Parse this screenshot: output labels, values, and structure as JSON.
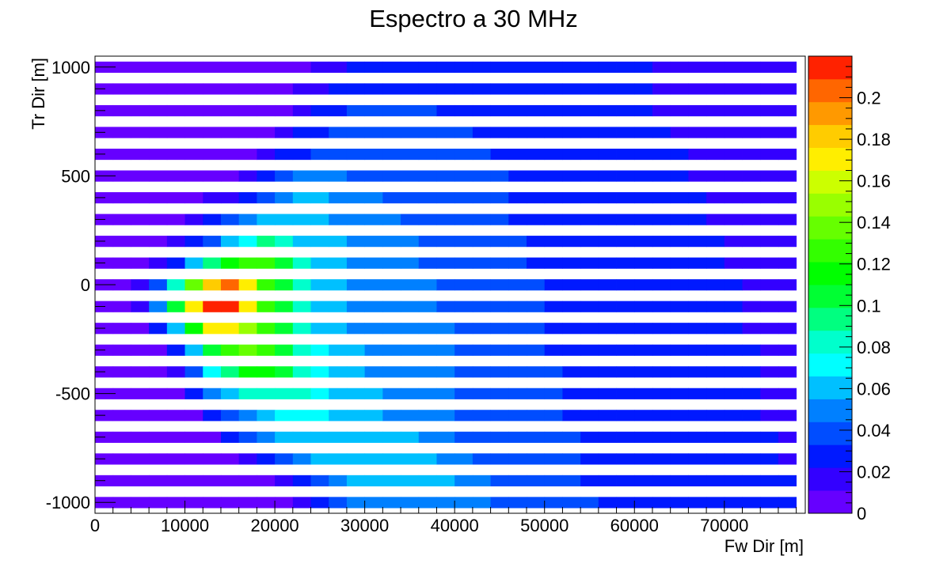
{
  "chart_data": {
    "type": "heatmap",
    "title": "Espectro a 30 MHz",
    "xlabel": "Fw Dir [m]",
    "ylabel": "Tr Dir [m]",
    "xlim": [
      0,
      79000
    ],
    "ylim": [
      -1050,
      1050
    ],
    "x_ticks": [
      0,
      10000,
      20000,
      30000,
      40000,
      50000,
      60000,
      70000
    ],
    "x_tick_labels": [
      "0",
      "10000",
      "20000",
      "30000",
      "40000",
      "50000",
      "60000",
      "70000"
    ],
    "y_ticks": [
      -1000,
      -500,
      0,
      500,
      1000
    ],
    "y_tick_labels": [
      "-1000",
      "-500",
      "0",
      "500",
      "1000"
    ],
    "colorbar": {
      "min": 0,
      "max": 0.22,
      "levels": 20,
      "ticks": [
        0,
        0.02,
        0.04,
        0.06,
        0.08,
        0.1,
        0.12,
        0.14,
        0.16,
        0.18,
        0.2
      ],
      "tick_labels": [
        "0",
        "0.02",
        "0.04",
        "0.06",
        "0.08",
        "0.1",
        "0.12",
        "0.14",
        "0.16",
        "0.18",
        "0.2"
      ],
      "colors": [
        "#6600ff",
        "#3300ff",
        "#0019ff",
        "#004dff",
        "#0080ff",
        "#00c0ff",
        "#00ffff",
        "#00ffcc",
        "#00ff80",
        "#00ff33",
        "#00ff00",
        "#33ff00",
        "#66ff00",
        "#99ff00",
        "#ccff00",
        "#ffee00",
        "#ffcc00",
        "#ff9900",
        "#ff6600",
        "#ff2200"
      ]
    },
    "grid": false,
    "x_bin_width": 2000,
    "y_bin_width": 50,
    "x_centers": [
      1000,
      3000,
      5000,
      7000,
      9000,
      11000,
      13000,
      15000,
      17000,
      19000,
      21000,
      23000,
      25000,
      27000,
      29000,
      31000,
      33000,
      35000,
      37000,
      39000,
      41000,
      43000,
      45000,
      47000,
      49000,
      51000,
      53000,
      55000,
      57000,
      59000,
      61000,
      63000,
      65000,
      67000,
      69000,
      71000,
      73000,
      75000,
      77000
    ],
    "y_centers": [
      1000,
      900,
      800,
      700,
      600,
      500,
      400,
      300,
      200,
      100,
      0,
      -100,
      -200,
      -300,
      -400,
      -500,
      -600,
      -700,
      -800,
      -900,
      -1000
    ],
    "z": [
      [
        0.005,
        0.005,
        0.005,
        0.005,
        0.005,
        0.005,
        0.005,
        0.005,
        0.005,
        0.005,
        0.005,
        0.005,
        0.015,
        0.015,
        0.025,
        0.025,
        0.025,
        0.025,
        0.025,
        0.025,
        0.025,
        0.025,
        0.025,
        0.025,
        0.025,
        0.025,
        0.025,
        0.025,
        0.025,
        0.025,
        0.025,
        0.015,
        0.015,
        0.015,
        0.015,
        0.015,
        0.015,
        0.015,
        0.015
      ],
      [
        0.005,
        0.005,
        0.005,
        0.005,
        0.005,
        0.005,
        0.005,
        0.005,
        0.005,
        0.005,
        0.005,
        0.015,
        0.015,
        0.025,
        0.025,
        0.025,
        0.025,
        0.025,
        0.025,
        0.025,
        0.025,
        0.025,
        0.025,
        0.025,
        0.025,
        0.025,
        0.025,
        0.025,
        0.025,
        0.025,
        0.025,
        0.015,
        0.015,
        0.015,
        0.015,
        0.015,
        0.015,
        0.015,
        0.015
      ],
      [
        0.005,
        0.005,
        0.005,
        0.005,
        0.005,
        0.005,
        0.005,
        0.005,
        0.005,
        0.005,
        0.005,
        0.015,
        0.025,
        0.025,
        0.035,
        0.035,
        0.035,
        0.035,
        0.035,
        0.025,
        0.025,
        0.025,
        0.025,
        0.025,
        0.025,
        0.025,
        0.025,
        0.025,
        0.025,
        0.025,
        0.025,
        0.015,
        0.015,
        0.015,
        0.015,
        0.015,
        0.015,
        0.015,
        0.015
      ],
      [
        0.005,
        0.005,
        0.005,
        0.005,
        0.005,
        0.005,
        0.005,
        0.005,
        0.005,
        0.005,
        0.015,
        0.025,
        0.025,
        0.035,
        0.035,
        0.035,
        0.035,
        0.035,
        0.035,
        0.035,
        0.035,
        0.025,
        0.025,
        0.025,
        0.025,
        0.025,
        0.025,
        0.025,
        0.025,
        0.025,
        0.025,
        0.025,
        0.015,
        0.015,
        0.015,
        0.015,
        0.015,
        0.015,
        0.015
      ],
      [
        0.005,
        0.005,
        0.005,
        0.005,
        0.005,
        0.005,
        0.005,
        0.005,
        0.005,
        0.015,
        0.025,
        0.025,
        0.035,
        0.035,
        0.035,
        0.035,
        0.035,
        0.035,
        0.035,
        0.035,
        0.035,
        0.035,
        0.025,
        0.025,
        0.025,
        0.025,
        0.025,
        0.025,
        0.025,
        0.025,
        0.025,
        0.025,
        0.025,
        0.015,
        0.015,
        0.015,
        0.015,
        0.015,
        0.015
      ],
      [
        0.005,
        0.005,
        0.005,
        0.005,
        0.005,
        0.005,
        0.005,
        0.005,
        0.015,
        0.025,
        0.035,
        0.045,
        0.045,
        0.045,
        0.035,
        0.035,
        0.035,
        0.035,
        0.035,
        0.035,
        0.035,
        0.035,
        0.035,
        0.025,
        0.025,
        0.025,
        0.025,
        0.025,
        0.025,
        0.025,
        0.025,
        0.025,
        0.025,
        0.015,
        0.015,
        0.015,
        0.015,
        0.015,
        0.015
      ],
      [
        0.005,
        0.005,
        0.005,
        0.005,
        0.005,
        0.005,
        0.015,
        0.015,
        0.025,
        0.035,
        0.045,
        0.055,
        0.055,
        0.045,
        0.045,
        0.045,
        0.035,
        0.035,
        0.035,
        0.035,
        0.035,
        0.035,
        0.035,
        0.025,
        0.025,
        0.025,
        0.025,
        0.025,
        0.025,
        0.025,
        0.025,
        0.025,
        0.025,
        0.025,
        0.015,
        0.015,
        0.015,
        0.015,
        0.015
      ],
      [
        0.005,
        0.005,
        0.005,
        0.005,
        0.005,
        0.015,
        0.025,
        0.035,
        0.045,
        0.065,
        0.065,
        0.055,
        0.055,
        0.045,
        0.045,
        0.045,
        0.045,
        0.035,
        0.035,
        0.035,
        0.035,
        0.035,
        0.035,
        0.025,
        0.025,
        0.025,
        0.025,
        0.025,
        0.025,
        0.025,
        0.025,
        0.025,
        0.025,
        0.025,
        0.015,
        0.015,
        0.015,
        0.015,
        0.015
      ],
      [
        0.005,
        0.005,
        0.005,
        0.005,
        0.015,
        0.025,
        0.035,
        0.055,
        0.075,
        0.095,
        0.085,
        0.065,
        0.055,
        0.055,
        0.045,
        0.045,
        0.045,
        0.045,
        0.035,
        0.035,
        0.035,
        0.035,
        0.035,
        0.035,
        0.025,
        0.025,
        0.025,
        0.025,
        0.025,
        0.025,
        0.025,
        0.025,
        0.025,
        0.025,
        0.025,
        0.015,
        0.015,
        0.015,
        0.015
      ],
      [
        0.005,
        0.005,
        0.005,
        0.015,
        0.025,
        0.055,
        0.095,
        0.115,
        0.125,
        0.125,
        0.105,
        0.085,
        0.065,
        0.055,
        0.045,
        0.045,
        0.045,
        0.045,
        0.035,
        0.035,
        0.035,
        0.035,
        0.035,
        0.035,
        0.025,
        0.025,
        0.025,
        0.025,
        0.025,
        0.025,
        0.025,
        0.025,
        0.025,
        0.025,
        0.025,
        0.015,
        0.015,
        0.015,
        0.015
      ],
      [
        0.005,
        0.005,
        0.015,
        0.035,
        0.085,
        0.135,
        0.185,
        0.205,
        0.165,
        0.125,
        0.105,
        0.085,
        0.065,
        0.055,
        0.045,
        0.045,
        0.045,
        0.045,
        0.045,
        0.035,
        0.035,
        0.035,
        0.035,
        0.035,
        0.035,
        0.025,
        0.025,
        0.025,
        0.025,
        0.025,
        0.025,
        0.025,
        0.025,
        0.025,
        0.025,
        0.025,
        0.015,
        0.015,
        0.015
      ],
      [
        0.005,
        0.005,
        0.015,
        0.045,
        0.105,
        0.175,
        0.215,
        0.215,
        0.165,
        0.125,
        0.105,
        0.085,
        0.065,
        0.055,
        0.045,
        0.045,
        0.045,
        0.045,
        0.045,
        0.035,
        0.035,
        0.035,
        0.035,
        0.035,
        0.035,
        0.025,
        0.025,
        0.025,
        0.025,
        0.025,
        0.025,
        0.025,
        0.025,
        0.025,
        0.025,
        0.025,
        0.015,
        0.015,
        0.015
      ],
      [
        0.005,
        0.005,
        0.005,
        0.025,
        0.055,
        0.115,
        0.165,
        0.165,
        0.145,
        0.125,
        0.105,
        0.085,
        0.065,
        0.055,
        0.045,
        0.045,
        0.045,
        0.045,
        0.045,
        0.045,
        0.035,
        0.035,
        0.035,
        0.035,
        0.035,
        0.025,
        0.025,
        0.025,
        0.025,
        0.025,
        0.025,
        0.025,
        0.025,
        0.025,
        0.025,
        0.025,
        0.015,
        0.015,
        0.015
      ],
      [
        0.005,
        0.005,
        0.005,
        0.005,
        0.025,
        0.055,
        0.105,
        0.125,
        0.135,
        0.125,
        0.105,
        0.085,
        0.075,
        0.065,
        0.055,
        0.045,
        0.045,
        0.045,
        0.045,
        0.045,
        0.035,
        0.035,
        0.035,
        0.035,
        0.035,
        0.025,
        0.025,
        0.025,
        0.025,
        0.025,
        0.025,
        0.025,
        0.025,
        0.025,
        0.025,
        0.025,
        0.025,
        0.015,
        0.015
      ],
      [
        0.005,
        0.005,
        0.005,
        0.005,
        0.015,
        0.035,
        0.075,
        0.095,
        0.115,
        0.115,
        0.105,
        0.085,
        0.075,
        0.065,
        0.055,
        0.045,
        0.045,
        0.045,
        0.045,
        0.045,
        0.035,
        0.035,
        0.035,
        0.035,
        0.035,
        0.035,
        0.025,
        0.025,
        0.025,
        0.025,
        0.025,
        0.025,
        0.025,
        0.025,
        0.025,
        0.025,
        0.025,
        0.015,
        0.015
      ],
      [
        0.005,
        0.005,
        0.005,
        0.005,
        0.005,
        0.025,
        0.045,
        0.065,
        0.085,
        0.085,
        0.085,
        0.085,
        0.075,
        0.065,
        0.055,
        0.055,
        0.045,
        0.045,
        0.045,
        0.045,
        0.035,
        0.035,
        0.035,
        0.035,
        0.035,
        0.035,
        0.025,
        0.025,
        0.025,
        0.025,
        0.025,
        0.025,
        0.025,
        0.025,
        0.025,
        0.025,
        0.025,
        0.015,
        0.015
      ],
      [
        0.005,
        0.005,
        0.005,
        0.005,
        0.005,
        0.005,
        0.025,
        0.035,
        0.045,
        0.065,
        0.075,
        0.075,
        0.075,
        0.065,
        0.065,
        0.055,
        0.045,
        0.045,
        0.045,
        0.045,
        0.035,
        0.035,
        0.035,
        0.035,
        0.035,
        0.035,
        0.025,
        0.025,
        0.025,
        0.025,
        0.025,
        0.025,
        0.025,
        0.025,
        0.025,
        0.025,
        0.025,
        0.015,
        0.015
      ],
      [
        0.005,
        0.005,
        0.005,
        0.005,
        0.005,
        0.005,
        0.005,
        0.025,
        0.035,
        0.045,
        0.055,
        0.065,
        0.065,
        0.065,
        0.065,
        0.065,
        0.055,
        0.055,
        0.045,
        0.045,
        0.035,
        0.035,
        0.035,
        0.035,
        0.035,
        0.035,
        0.035,
        0.025,
        0.025,
        0.025,
        0.025,
        0.025,
        0.025,
        0.025,
        0.025,
        0.025,
        0.025,
        0.025,
        0.015
      ],
      [
        0.005,
        0.005,
        0.005,
        0.005,
        0.005,
        0.005,
        0.005,
        0.005,
        0.015,
        0.025,
        0.035,
        0.045,
        0.055,
        0.055,
        0.065,
        0.055,
        0.055,
        0.055,
        0.055,
        0.045,
        0.045,
        0.035,
        0.035,
        0.035,
        0.035,
        0.035,
        0.035,
        0.025,
        0.025,
        0.025,
        0.025,
        0.025,
        0.025,
        0.025,
        0.025,
        0.025,
        0.025,
        0.025,
        0.015
      ],
      [
        0.005,
        0.005,
        0.005,
        0.005,
        0.005,
        0.005,
        0.005,
        0.005,
        0.005,
        0.005,
        0.015,
        0.025,
        0.035,
        0.045,
        0.055,
        0.055,
        0.055,
        0.055,
        0.055,
        0.055,
        0.045,
        0.045,
        0.035,
        0.035,
        0.035,
        0.035,
        0.035,
        0.025,
        0.025,
        0.025,
        0.025,
        0.025,
        0.025,
        0.025,
        0.025,
        0.025,
        0.025,
        0.025,
        0.025
      ],
      [
        0.005,
        0.005,
        0.005,
        0.005,
        0.005,
        0.005,
        0.005,
        0.005,
        0.005,
        0.005,
        0.005,
        0.015,
        0.025,
        0.035,
        0.045,
        0.045,
        0.045,
        0.045,
        0.045,
        0.045,
        0.045,
        0.045,
        0.035,
        0.035,
        0.035,
        0.035,
        0.035,
        0.035,
        0.025,
        0.025,
        0.025,
        0.025,
        0.025,
        0.025,
        0.025,
        0.025,
        0.025,
        0.025,
        0.025
      ]
    ]
  }
}
